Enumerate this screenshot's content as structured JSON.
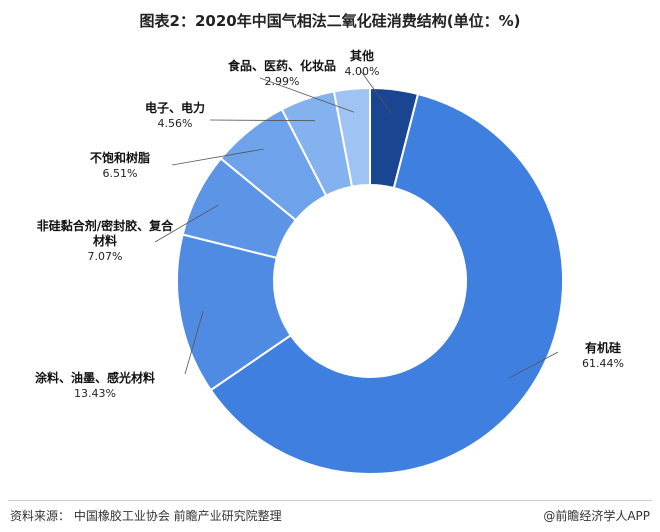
{
  "title": "图表2：2020年中国气相法二氧化硅消费结构(单位：%)",
  "footer": {
    "source": "资料来源： 中国橡胶工业协会 前瞻产业研究院整理",
    "credit": "@前瞻经济学人APP"
  },
  "chart_data": {
    "type": "pie",
    "donut": true,
    "slices": [
      {
        "label": "有机硅",
        "value": 61.44,
        "pct": "61.44%",
        "color": "#3f7fe0"
      },
      {
        "label": "涂料、油墨、感光材料",
        "value": 13.43,
        "pct": "13.43%",
        "color": "#4f8be2"
      },
      {
        "label": "非硅黏合剂/密封胶、复合材料",
        "value": 7.07,
        "pct": "7.07%",
        "color": "#5d95e6"
      },
      {
        "label": "不饱和树脂",
        "value": 6.51,
        "pct": "6.51%",
        "color": "#6ea2ea"
      },
      {
        "label": "电子、电力",
        "value": 4.56,
        "pct": "4.56%",
        "color": "#84b2ee"
      },
      {
        "label": "食品、医药、化妆品",
        "value": 2.99,
        "pct": "2.99%",
        "color": "#9fc3f3"
      },
      {
        "label": "其他",
        "value": 4.0,
        "pct": "4.00%",
        "color": "#1a4590"
      }
    ]
  }
}
